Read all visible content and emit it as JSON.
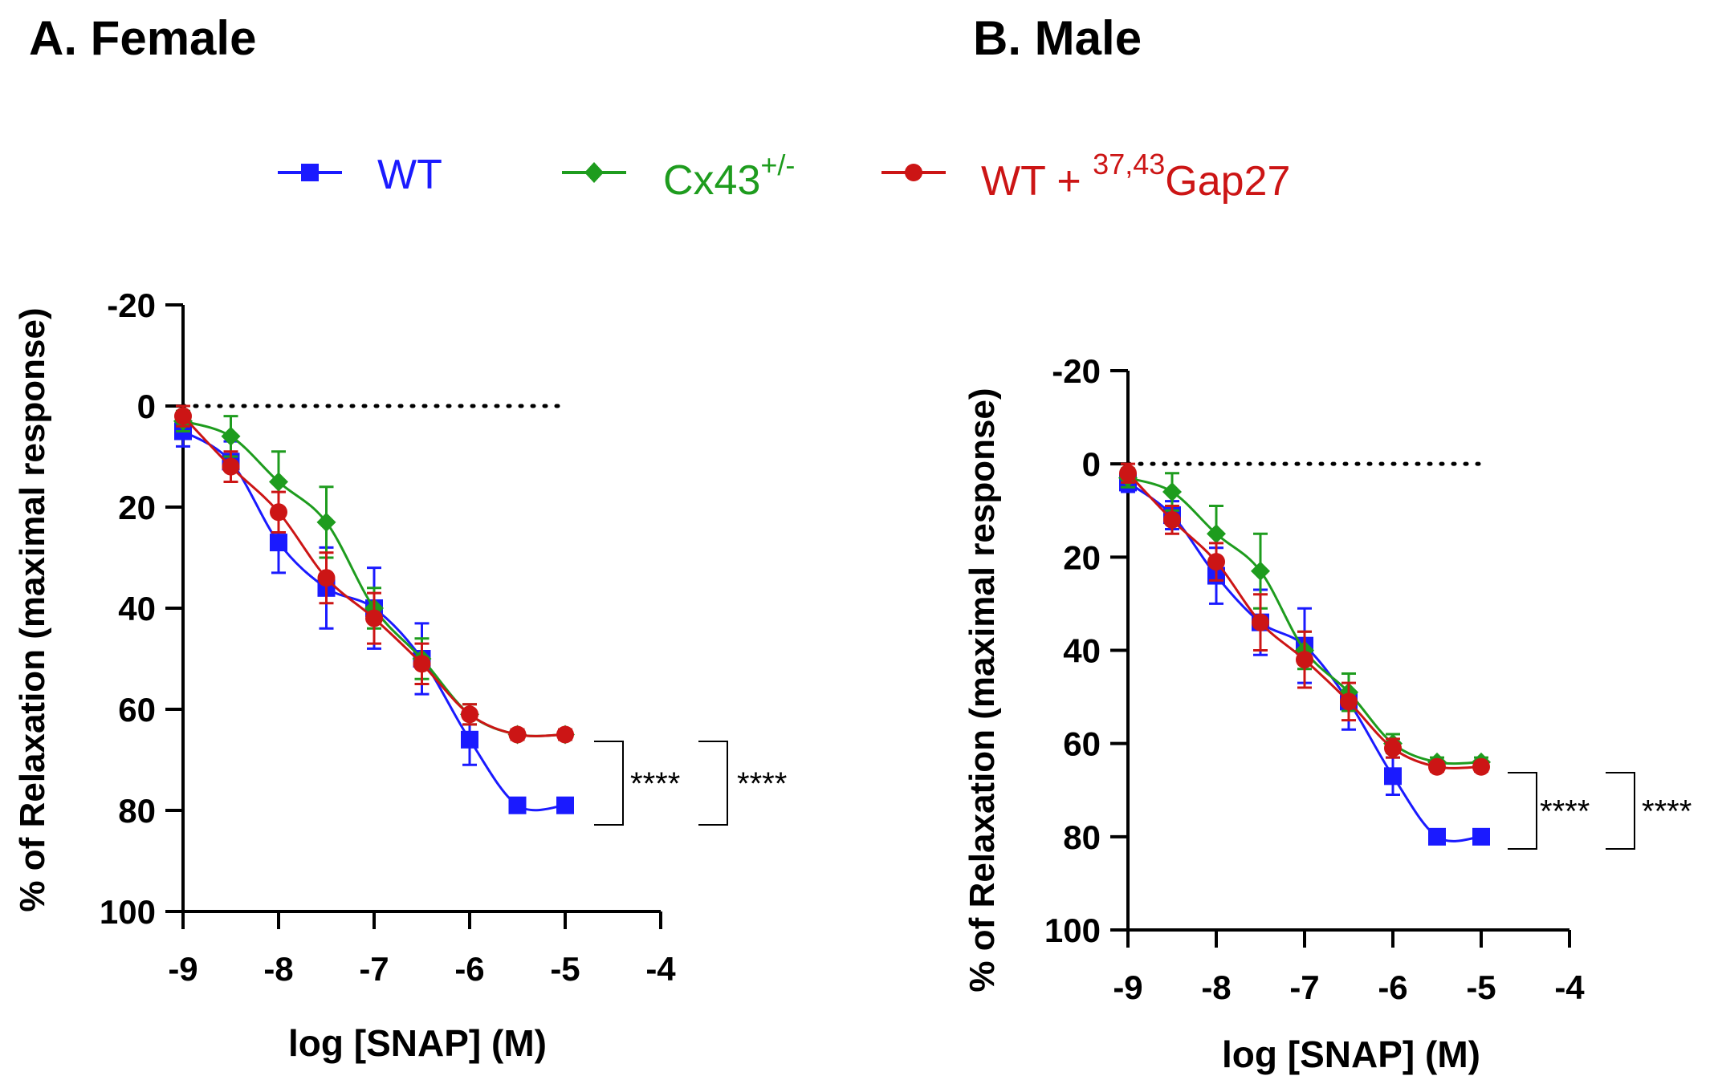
{
  "legend": [
    {
      "name": "WT",
      "color": "#1a1aff",
      "marker": "square"
    },
    {
      "name": "Cx43",
      "sup": "+/-",
      "color": "#1e9c1e",
      "marker": "diamond"
    },
    {
      "name_pre": "WT + ",
      "sup": "37,43",
      "name_post": "Gap27",
      "color": "#cc1515",
      "marker": "circle"
    }
  ],
  "chart_data": [
    {
      "type": "line",
      "title": "A. Female",
      "xlabel": "log [SNAP] (M)",
      "ylabel": "% of Relaxation (maximal response)",
      "xlim": [
        -9,
        -4
      ],
      "ylim": [
        -20,
        100
      ],
      "y_inverted": true,
      "xticks": [
        -9,
        -8,
        -7,
        -6,
        -5,
        -4
      ],
      "yticks": [
        -20,
        0,
        20,
        40,
        60,
        80,
        100
      ],
      "reference_line_y": 0,
      "x": [
        -9,
        -8.5,
        -8,
        -7.5,
        -7,
        -6.5,
        -6,
        -5.5,
        -5
      ],
      "series": [
        {
          "name": "WT",
          "values": [
            5,
            11,
            27,
            36,
            40,
            50,
            66,
            79,
            79
          ],
          "err": [
            3,
            4,
            6,
            8,
            8,
            7,
            5,
            0,
            0
          ]
        },
        {
          "name": "Cx43+/-",
          "values": [
            3,
            6,
            15,
            23,
            40,
            50,
            61,
            65,
            65
          ],
          "err": [
            2,
            4,
            6,
            7,
            4,
            4,
            2,
            1,
            1
          ]
        },
        {
          "name": "WT + 37,43Gap27",
          "values": [
            2,
            12,
            21,
            34,
            42,
            51,
            61,
            65,
            65
          ],
          "err": [
            2,
            3,
            4,
            5,
            5,
            4,
            2,
            1,
            1
          ]
        }
      ],
      "annotations": [
        "****",
        "****"
      ]
    },
    {
      "type": "line",
      "title": "B. Male",
      "xlabel": "log [SNAP] (M)",
      "ylabel": "% of Relaxation (maximal response)",
      "xlim": [
        -9,
        -4
      ],
      "ylim": [
        -20,
        100
      ],
      "y_inverted": true,
      "xticks": [
        -9,
        -8,
        -7,
        -6,
        -5,
        -4
      ],
      "yticks": [
        -20,
        0,
        20,
        40,
        60,
        80,
        100
      ],
      "reference_line_y": 0,
      "x": [
        -9,
        -8.5,
        -8,
        -7.5,
        -7,
        -6.5,
        -6,
        -5.5,
        -5
      ],
      "series": [
        {
          "name": "WT",
          "values": [
            4,
            11,
            24,
            34,
            39,
            51,
            67,
            80,
            80
          ],
          "err": [
            2,
            3,
            6,
            7,
            8,
            6,
            4,
            0,
            0
          ]
        },
        {
          "name": "Cx43+/-",
          "values": [
            3,
            6,
            15,
            23,
            40,
            49,
            60,
            64,
            64
          ],
          "err": [
            2,
            4,
            6,
            8,
            4,
            4,
            2,
            1,
            1
          ]
        },
        {
          "name": "WT + 37,43Gap27",
          "values": [
            2,
            12,
            21,
            34,
            42,
            51,
            61,
            65,
            65
          ],
          "err": [
            2,
            3,
            4,
            6,
            6,
            4,
            2,
            1,
            1
          ]
        }
      ],
      "annotations": [
        "****",
        "****"
      ]
    }
  ]
}
